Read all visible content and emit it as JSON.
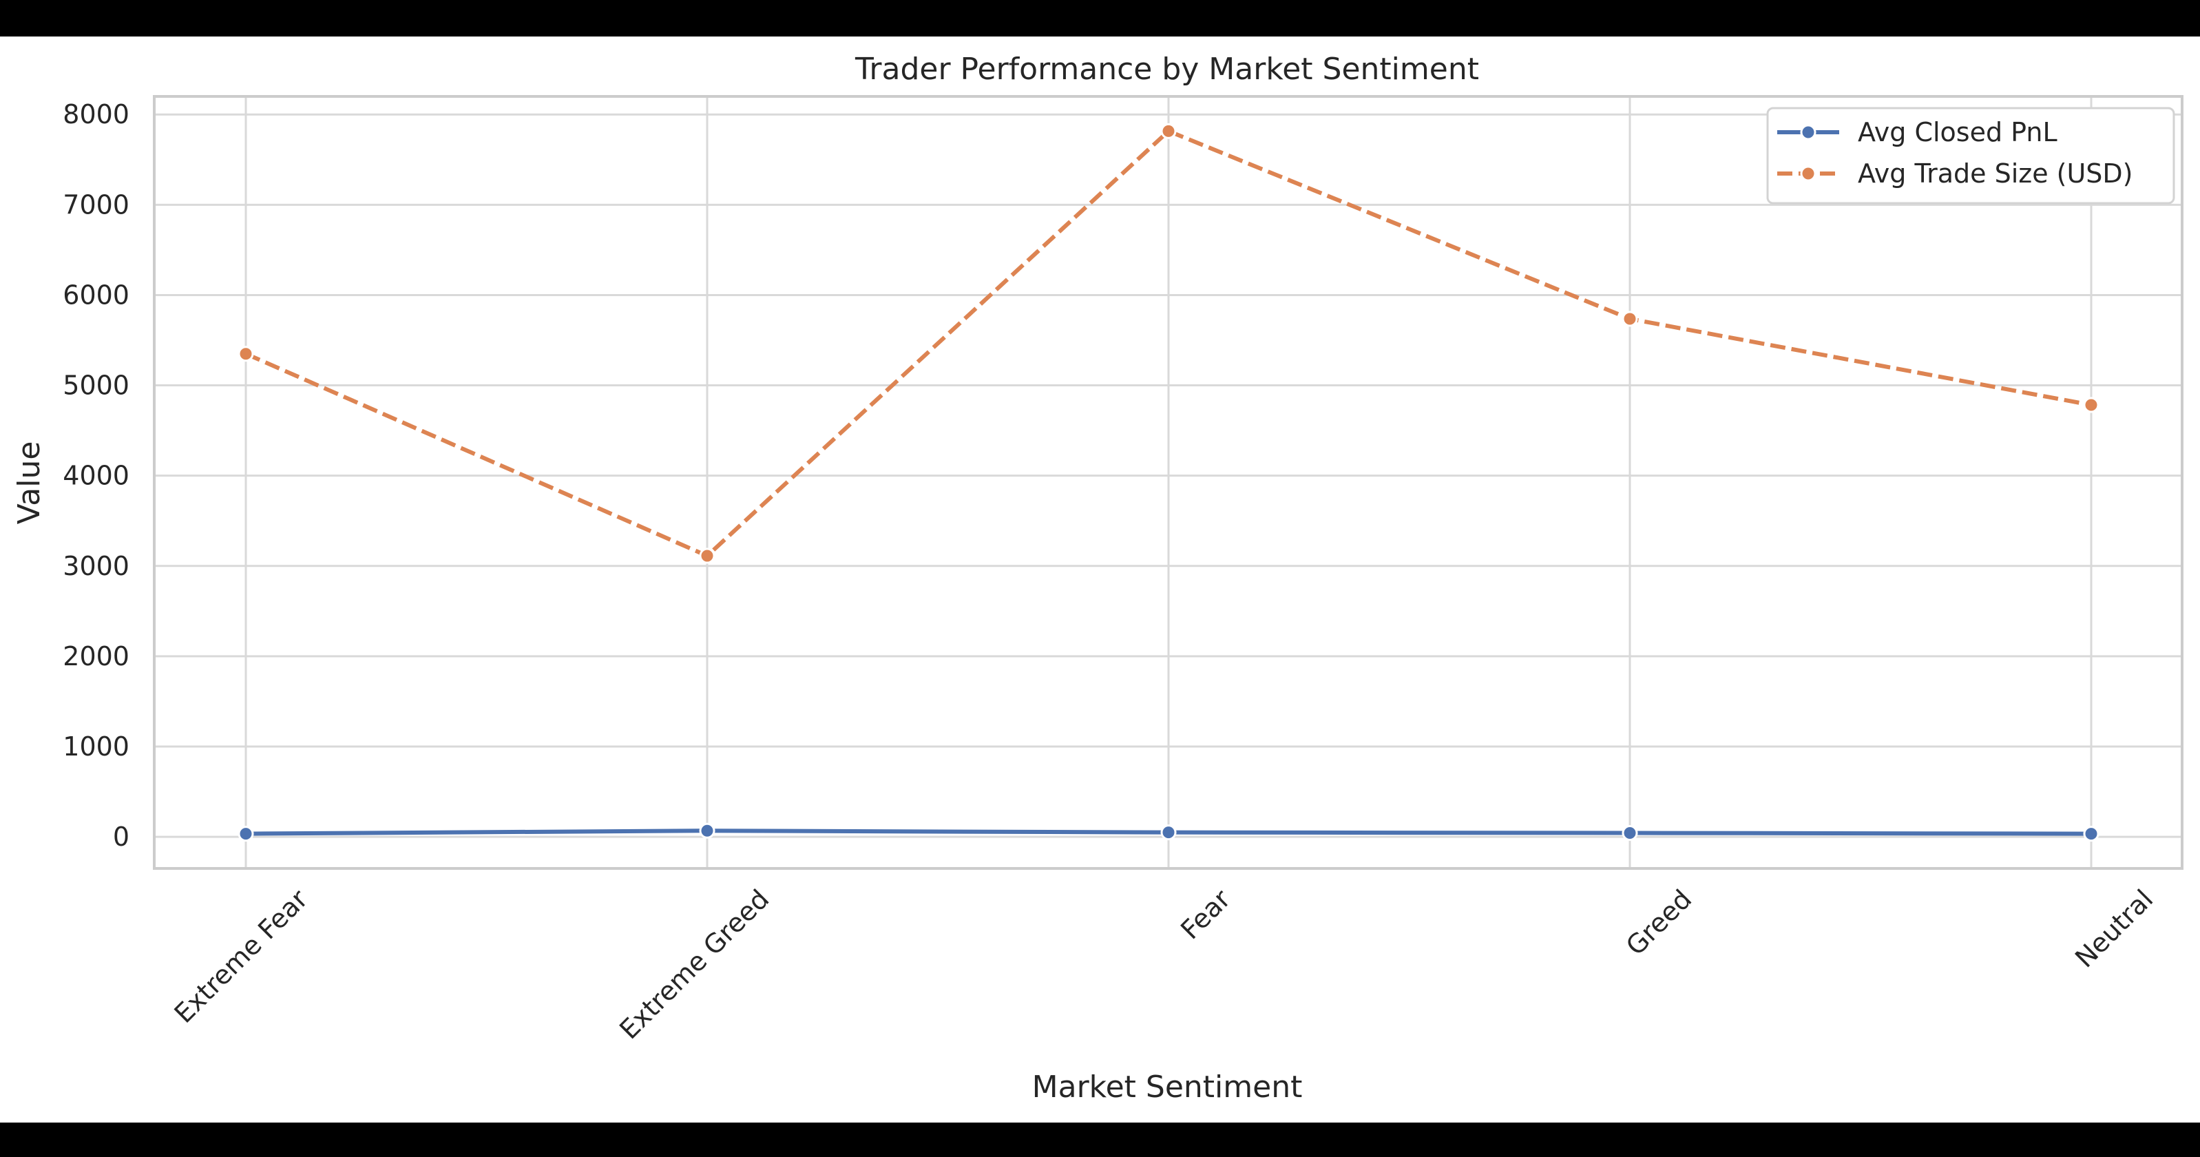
{
  "chart_data": {
    "type": "line",
    "title": "Trader Performance by Market Sentiment",
    "xlabel": "Market Sentiment",
    "ylabel": "Value",
    "categories": [
      "Extreme Fear",
      "Extreme Greed",
      "Fear",
      "Greed",
      "Neutral"
    ],
    "ylim": [
      -350,
      8200
    ],
    "yticks": [
      0,
      1000,
      2000,
      3000,
      4000,
      5000,
      6000,
      7000,
      8000
    ],
    "grid": true,
    "legend_position": "top-right",
    "series": [
      {
        "name": "Avg Closed PnL",
        "values": [
          34.5,
          67.9,
          49.2,
          42.7,
          34.3
        ],
        "color": "#4c72b0",
        "line_style": "solid",
        "marker": "circle"
      },
      {
        "name": "Avg Trade Size (USD)",
        "values": [
          5349.7,
          3112.3,
          7816.1,
          5736.9,
          4782.7
        ],
        "color": "#dd8452",
        "line_style": "dashed",
        "marker": "circle"
      }
    ]
  }
}
